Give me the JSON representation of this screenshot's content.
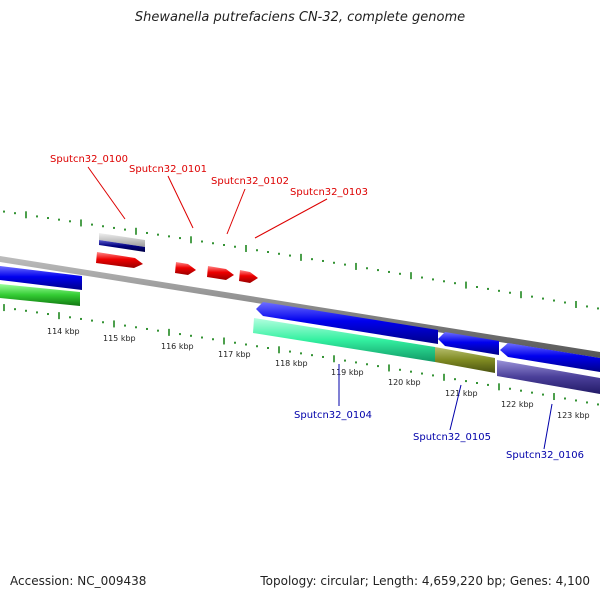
{
  "title": "Shewanella putrefaciens CN-32, complete genome",
  "footer": {
    "accession": "Accession: NC_009438",
    "topology": "Topology: circular; Length: 4,659,220 bp; Genes: 4,100"
  },
  "colors": {
    "forward_label": "#dd0000",
    "reverse_label": "#0000aa",
    "ticks": "#007700",
    "backbone": "#888888"
  },
  "axis": {
    "tick_labels": [
      "114 kbp",
      "115 kbp",
      "116 kbp",
      "117 kbp",
      "118 kbp",
      "119 kbp",
      "120 kbp",
      "121 kbp",
      "122 kbp",
      "123 kbp"
    ]
  },
  "genes": {
    "forward": [
      "Sputcn32_0100",
      "Sputcn32_0101",
      "Sputcn32_0102",
      "Sputcn32_0103"
    ],
    "reverse": [
      "Sputcn32_0104",
      "Sputcn32_0105",
      "Sputcn32_0106"
    ]
  }
}
